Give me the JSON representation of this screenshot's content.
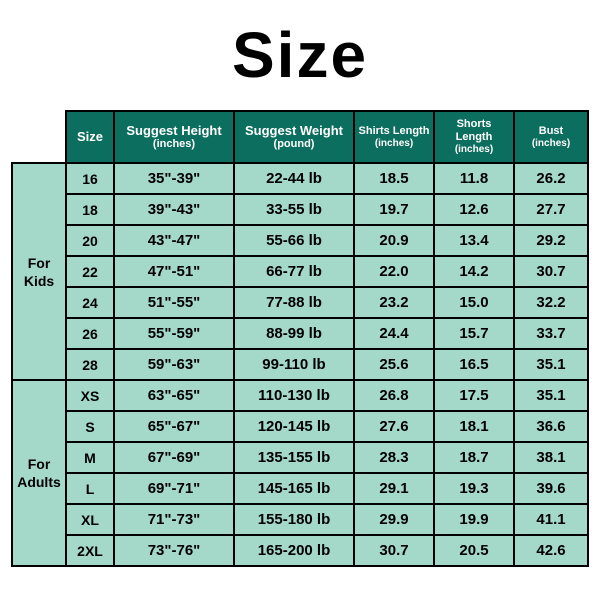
{
  "title": "Size",
  "colors": {
    "header_bg": "#0c6e5e",
    "header_fg": "#ffffff",
    "body_bg": "#a4d8c9",
    "body_fg": "#000000",
    "border": "#000000",
    "page_bg": "#ffffff"
  },
  "columns": [
    {
      "label": "Size",
      "unit": ""
    },
    {
      "label": "Suggest Height",
      "unit": "(inches)"
    },
    {
      "label": "Suggest Weight",
      "unit": "(pound)"
    },
    {
      "label": "Shirts Length",
      "unit": "(inches)"
    },
    {
      "label": "Shorts Length",
      "unit": "(inches)"
    },
    {
      "label": "Bust",
      "unit": "(inches)"
    }
  ],
  "groups": [
    {
      "label_line1": "For",
      "label_line2": "Kids",
      "rows": [
        {
          "size": "16",
          "height": "35\"-39\"",
          "weight": "22-44 lb",
          "shirts": "18.5",
          "shorts": "11.8",
          "bust": "26.2"
        },
        {
          "size": "18",
          "height": "39\"-43\"",
          "weight": "33-55 lb",
          "shirts": "19.7",
          "shorts": "12.6",
          "bust": "27.7"
        },
        {
          "size": "20",
          "height": "43\"-47\"",
          "weight": "55-66 lb",
          "shirts": "20.9",
          "shorts": "13.4",
          "bust": "29.2"
        },
        {
          "size": "22",
          "height": "47\"-51\"",
          "weight": "66-77 lb",
          "shirts": "22.0",
          "shorts": "14.2",
          "bust": "30.7"
        },
        {
          "size": "24",
          "height": "51\"-55\"",
          "weight": "77-88 lb",
          "shirts": "23.2",
          "shorts": "15.0",
          "bust": "32.2"
        },
        {
          "size": "26",
          "height": "55\"-59\"",
          "weight": "88-99 lb",
          "shirts": "24.4",
          "shorts": "15.7",
          "bust": "33.7"
        },
        {
          "size": "28",
          "height": "59\"-63\"",
          "weight": "99-110 lb",
          "shirts": "25.6",
          "shorts": "16.5",
          "bust": "35.1"
        }
      ]
    },
    {
      "label_line1": "For",
      "label_line2": "Adults",
      "rows": [
        {
          "size": "XS",
          "height": "63\"-65\"",
          "weight": "110-130 lb",
          "shirts": "26.8",
          "shorts": "17.5",
          "bust": "35.1"
        },
        {
          "size": "S",
          "height": "65\"-67\"",
          "weight": "120-145 lb",
          "shirts": "27.6",
          "shorts": "18.1",
          "bust": "36.6"
        },
        {
          "size": "M",
          "height": "67\"-69\"",
          "weight": "135-155 lb",
          "shirts": "28.3",
          "shorts": "18.7",
          "bust": "38.1"
        },
        {
          "size": "L",
          "height": "69\"-71\"",
          "weight": "145-165 lb",
          "shirts": "29.1",
          "shorts": "19.3",
          "bust": "39.6"
        },
        {
          "size": "XL",
          "height": "71\"-73\"",
          "weight": "155-180 lb",
          "shirts": "29.9",
          "shorts": "19.9",
          "bust": "41.1"
        },
        {
          "size": "2XL",
          "height": "73\"-76\"",
          "weight": "165-200 lb",
          "shirts": "30.7",
          "shorts": "20.5",
          "bust": "42.6"
        }
      ]
    }
  ]
}
